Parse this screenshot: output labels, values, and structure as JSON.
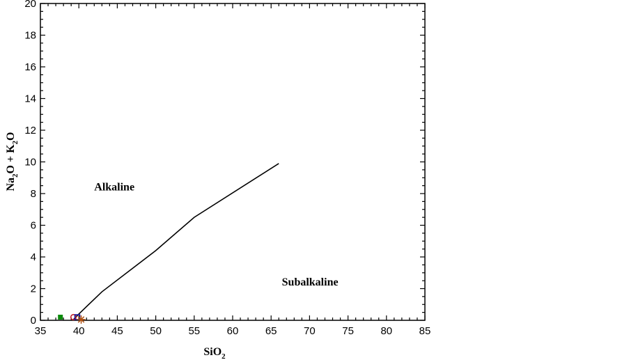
{
  "chart_data": {
    "type": "scatter",
    "xlim": [
      35,
      85
    ],
    "ylim": [
      0,
      20
    ],
    "x_ticks": [
      35,
      40,
      45,
      50,
      55,
      60,
      65,
      70,
      75,
      80,
      85
    ],
    "y_ticks": [
      0,
      2,
      4,
      6,
      8,
      10,
      12,
      14,
      16,
      18,
      20
    ],
    "xlabel": {
      "base": "SiO",
      "sub": "2"
    },
    "ylabel": {
      "parts": [
        "Na",
        "2",
        "O + K",
        "2",
        "O"
      ]
    },
    "grid": false,
    "boundary_line": [
      [
        39.2,
        0
      ],
      [
        40.0,
        0.4
      ],
      [
        43.0,
        1.8
      ],
      [
        50.0,
        4.4
      ],
      [
        55.0,
        6.5
      ],
      [
        66.0,
        9.9
      ]
    ],
    "region_labels": [
      {
        "text": "Alkaline",
        "x": 42.0,
        "y": 8.2
      },
      {
        "text": "Subalkaline",
        "x": 66.4,
        "y": 2.2
      }
    ],
    "series": [
      {
        "marker": "filled-square",
        "color": "#0a8a0a",
        "points": [
          [
            37.6,
            0.2
          ]
        ]
      },
      {
        "marker": "open-circle",
        "color": "#c0202a",
        "points": [
          [
            39.3,
            0.2
          ]
        ]
      },
      {
        "marker": "open-square",
        "color": "#1a1aa0",
        "points": [
          [
            39.8,
            0.2
          ]
        ]
      },
      {
        "marker": "asterisk",
        "color": "#b05010",
        "points": [
          [
            40.3,
            0.05
          ]
        ]
      }
    ],
    "colors": {
      "axis": "#000000",
      "line": "#000000"
    }
  }
}
